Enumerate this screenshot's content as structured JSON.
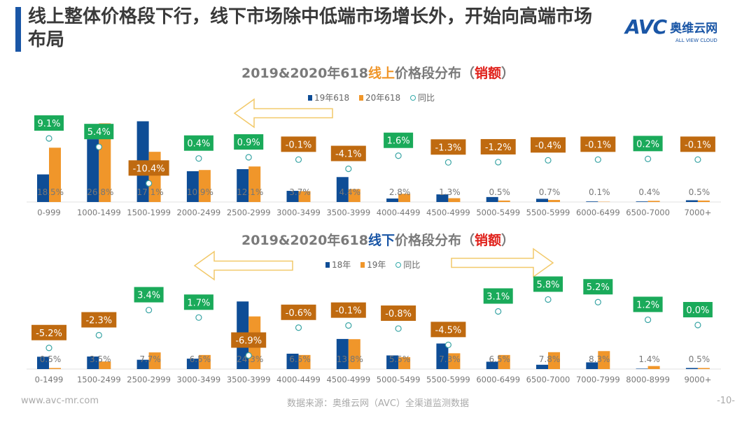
{
  "header": {
    "title": "线上整体价格段下行，线下市场除中低端市场增长外，开始向高端市场布局",
    "logo_text": "AVC",
    "logo_cn": "奥维云网",
    "logo_en": "ALL VIEW CLOUD"
  },
  "colors": {
    "blue": "#0e4d96",
    "orange": "#f0962a",
    "pos_box": "#1aaa5a",
    "neg_box": "#bf6a10",
    "marker": "#3aa5a5",
    "accent_text": "#f0962a",
    "red_text": "#e0201a"
  },
  "chart_data": [
    {
      "type": "bar",
      "title_prefix": "2019&2020年618",
      "title_highlight": "线上",
      "title_mid": "价格段分布（",
      "title_red": "销额",
      "title_suffix": "）",
      "legend": [
        "19年618",
        "20年618",
        "同比"
      ],
      "categories": [
        "0-999",
        "1000-1499",
        "1500-1999",
        "2000-2499",
        "2500-2999",
        "3000-3499",
        "3500-3999",
        "4000-4499",
        "4500-4999",
        "5000-5499",
        "5500-5999",
        "6000-6499",
        "6500-7000",
        "7000+"
      ],
      "series": [
        {
          "name": "19年618",
          "values": [
            9.4,
            21.4,
            27.5,
            10.5,
            11.2,
            3.8,
            8.5,
            1.2,
            2.6,
            1.7,
            1.1,
            0.2,
            0.2,
            0.6
          ]
        },
        {
          "name": "20年618",
          "values": [
            18.5,
            26.8,
            17.1,
            10.9,
            12.1,
            3.7,
            4.4,
            2.8,
            1.3,
            0.5,
            0.7,
            0.1,
            0.4,
            0.5
          ]
        },
        {
          "name": "同比",
          "values": [
            9.1,
            5.4,
            -10.4,
            0.4,
            0.9,
            -0.1,
            -4.1,
            1.6,
            -1.3,
            -1.2,
            -0.4,
            -0.1,
            0.2,
            -0.1
          ]
        }
      ],
      "data_labels": [
        "18.5%",
        "26.8%",
        "17.1%",
        "10.9%",
        "12.1%",
        "3.7%",
        "4.4%",
        "2.8%",
        "1.3%",
        "0.5%",
        "0.7%",
        "0.1%",
        "0.4%",
        "0.5%"
      ],
      "yoy_labels": [
        "9.1%",
        "5.4%",
        "-10.4%",
        "0.4%",
        "0.9%",
        "-0.1%",
        "-4.1%",
        "1.6%",
        "-1.3%",
        "-1.2%",
        "-0.4%",
        "-0.1%",
        "0.2%",
        "-0.1%"
      ],
      "arrows": [
        "left"
      ]
    },
    {
      "type": "bar",
      "title_prefix": "2019&2020年618",
      "title_highlight": "线下",
      "title_mid": "价格段分布（",
      "title_red": "销额",
      "title_suffix": "）",
      "legend": [
        "18年",
        "19年",
        "同比"
      ],
      "categories": [
        "0-1499",
        "1500-2499",
        "2500-2999",
        "3000-3499",
        "3500-3999",
        "4000-4499",
        "4500-4999",
        "5000-5499",
        "5500-5999",
        "6000-6499",
        "6500-7000",
        "7000-7999",
        "8000-8999",
        "9000+"
      ],
      "series": [
        {
          "name": "18年",
          "values": [
            5.7,
            5.8,
            4.3,
            4.8,
            31.2,
            7.1,
            13.9,
            6.3,
            11.8,
            3.4,
            2.0,
            3.1,
            0.2,
            0.5
          ]
        },
        {
          "name": "19年",
          "values": [
            0.5,
            3.5,
            7.7,
            6.5,
            24.3,
            6.5,
            13.8,
            5.5,
            7.3,
            6.5,
            7.8,
            8.3,
            1.4,
            0.5
          ]
        },
        {
          "name": "同比",
          "values": [
            -5.2,
            -2.3,
            3.4,
            1.7,
            -6.9,
            -0.6,
            -0.1,
            -0.8,
            -4.5,
            3.1,
            5.8,
            5.2,
            1.2,
            0.0
          ]
        }
      ],
      "data_labels": [
        "0.5%",
        "3.5%",
        "7.7%",
        "6.5%",
        "24.3%",
        "6.5%",
        "13.8%",
        "5.5%",
        "7.3%",
        "6.5%",
        "7.8%",
        "8.3%",
        "1.4%",
        "0.5%"
      ],
      "yoy_labels": [
        "-5.2%",
        "-2.3%",
        "3.4%",
        "1.7%",
        "-6.9%",
        "-0.6%",
        "-0.1%",
        "-0.8%",
        "-4.5%",
        "3.1%",
        "5.8%",
        "5.2%",
        "1.2%",
        "0.0%"
      ],
      "arrows": [
        "left",
        "right"
      ]
    }
  ],
  "footer": {
    "website": "www.avc-mr.com",
    "source": "数据来源：奥维云网（AVC）全渠道监测数据",
    "page": "-10-"
  }
}
